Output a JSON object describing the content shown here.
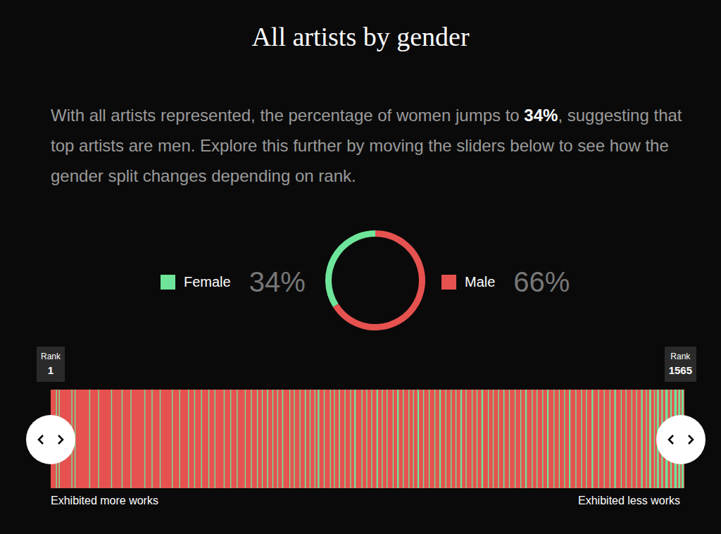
{
  "chart_data": [
    {
      "type": "pie",
      "title": "All artists by gender",
      "subtitle": [
        "With all artists represented, the percentage of women jumps to ",
        "34%",
        ", suggesting that top artists are men. Explore this further by moving the sliders below to see how the gender split changes depending on rank."
      ],
      "categories": [
        "Female",
        "Male"
      ],
      "values": [
        34,
        66
      ],
      "value_labels": [
        "34%",
        "66%"
      ],
      "colors": [
        "#6ee59b",
        "#e6524f"
      ]
    },
    {
      "type": "strip",
      "xlabel": "Rank",
      "xlim": [
        1,
        1565
      ],
      "xticks": [
        1,
        1565
      ],
      "annotations": [
        "Exhibited more works",
        "Exhibited less works"
      ],
      "background": {
        "name": "Male",
        "color": "#e6524f"
      },
      "series": [
        {
          "name": "Female",
          "color": "#6ee59b",
          "runs": [
            [
              14,
              14
            ],
            [
              21,
              21
            ],
            [
              52,
              52
            ],
            [
              60,
              62
            ],
            [
              96,
              96
            ],
            [
              118,
              118
            ],
            [
              150,
              150
            ],
            [
              176,
              176
            ],
            [
              198,
              198
            ],
            [
              232,
              232
            ],
            [
              250,
              250
            ],
            [
              270,
              270
            ],
            [
              300,
              300
            ],
            [
              318,
              318
            ],
            [
              340,
              340
            ],
            [
              355,
              355
            ],
            [
              372,
              372
            ],
            [
              390,
              390
            ],
            [
              405,
              405
            ],
            [
              428,
              428
            ],
            [
              444,
              444
            ],
            [
              460,
              460
            ],
            [
              480,
              480
            ],
            [
              495,
              495
            ],
            [
              510,
              510
            ],
            [
              522,
              522
            ],
            [
              535,
              538
            ],
            [
              548,
              548
            ],
            [
              560,
              560
            ],
            [
              572,
              575
            ],
            [
              590,
              590
            ],
            [
              601,
              601
            ],
            [
              615,
              615
            ],
            [
              628,
              631
            ],
            [
              640,
              640
            ],
            [
              652,
              652
            ],
            [
              660,
              664
            ],
            [
              675,
              675
            ],
            [
              690,
              690
            ],
            [
              700,
              700
            ],
            [
              712,
              715
            ],
            [
              726,
              726
            ],
            [
              740,
              740
            ],
            [
              750,
              754
            ],
            [
              768,
              768
            ],
            [
              780,
              780
            ],
            [
              792,
              792
            ],
            [
              805,
              809
            ],
            [
              818,
              818
            ],
            [
              830,
              830
            ],
            [
              845,
              845
            ],
            [
              856,
              860
            ],
            [
              870,
              870
            ],
            [
              884,
              884
            ],
            [
              895,
              895
            ],
            [
              906,
              910
            ],
            [
              920,
              920
            ],
            [
              934,
              934
            ],
            [
              948,
              948
            ],
            [
              960,
              964
            ],
            [
              975,
              975
            ],
            [
              988,
              988
            ],
            [
              1000,
              1000
            ],
            [
              1012,
              1016
            ],
            [
              1025,
              1025
            ],
            [
              1040,
              1040
            ],
            [
              1052,
              1052
            ],
            [
              1064,
              1068
            ],
            [
              1080,
              1080
            ],
            [
              1092,
              1092
            ],
            [
              1105,
              1105
            ],
            [
              1118,
              1121
            ],
            [
              1132,
              1132
            ],
            [
              1146,
              1146
            ],
            [
              1160,
              1160
            ],
            [
              1172,
              1176
            ],
            [
              1188,
              1188
            ],
            [
              1200,
              1200
            ],
            [
              1214,
              1214
            ],
            [
              1226,
              1230
            ],
            [
              1242,
              1242
            ],
            [
              1255,
              1255
            ],
            [
              1268,
              1268
            ],
            [
              1280,
              1284
            ],
            [
              1296,
              1296
            ],
            [
              1310,
              1310
            ],
            [
              1322,
              1322
            ],
            [
              1336,
              1340
            ],
            [
              1352,
              1352
            ],
            [
              1366,
              1366
            ],
            [
              1380,
              1380
            ],
            [
              1392,
              1396
            ],
            [
              1408,
              1408
            ],
            [
              1420,
              1420
            ],
            [
              1434,
              1434
            ],
            [
              1446,
              1446
            ],
            [
              1458,
              1462
            ],
            [
              1470,
              1470
            ],
            [
              1478,
              1483
            ],
            [
              1490,
              1490
            ],
            [
              1497,
              1502
            ],
            [
              1508,
              1512
            ],
            [
              1518,
              1524
            ],
            [
              1530,
              1534
            ],
            [
              1540,
              1546
            ],
            [
              1550,
              1555
            ],
            [
              1558,
              1563
            ]
          ]
        }
      ]
    }
  ]
}
